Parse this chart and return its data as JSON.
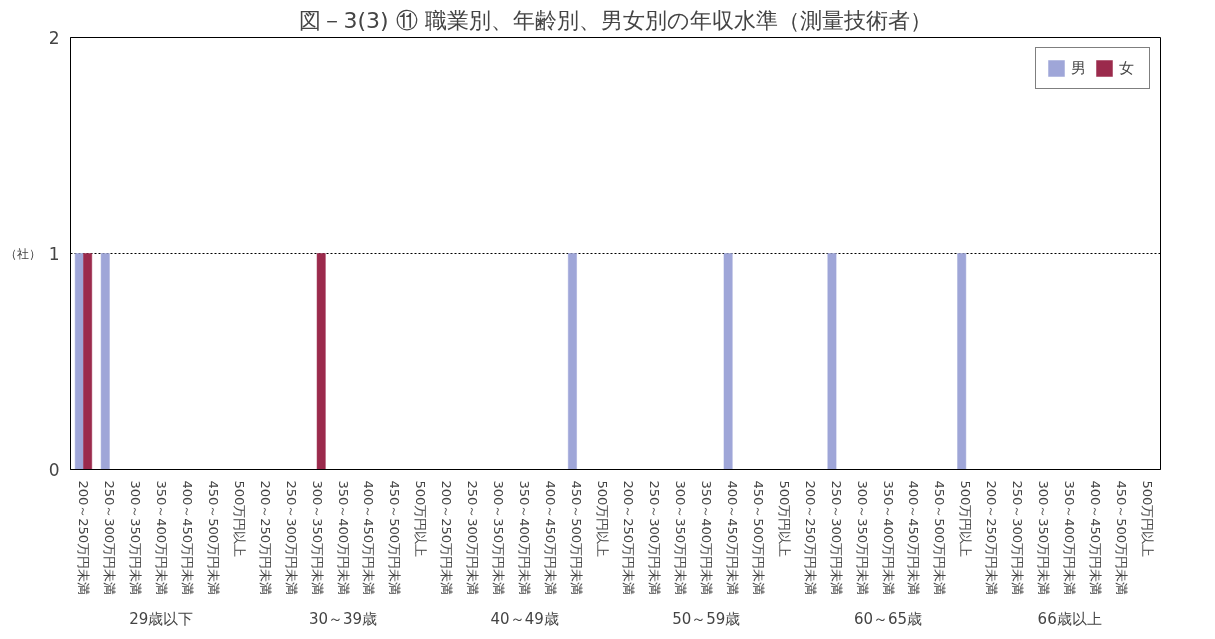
{
  "chart_data": {
    "type": "bar",
    "title": "図－3(3) ⑪ 職業別、年齢別、男女別の年収水準（測量技術者）",
    "ylabel": "（社）",
    "categories": [
      "200～250万円未満",
      "250～300万円未満",
      "300～350万円未満",
      "350～400万円未満",
      "400～450万円未満",
      "450～500万円未満",
      "500万円以上",
      "200～250万円未満",
      "250～300万円未満",
      "300～350万円未満",
      "350～400万円未満",
      "400～450万円未満",
      "450～500万円未満",
      "500万円以上",
      "200～250万円未満",
      "250～300万円未満",
      "300～350万円未満",
      "350～400万円未満",
      "400～450万円未満",
      "450～500万円未満",
      "500万円以上",
      "200～250万円未満",
      "250～300万円未満",
      "300～350万円未満",
      "350～400万円未満",
      "400～450万円未満",
      "450～500万円未満",
      "500万円以上",
      "200～250万円未満",
      "250～300万円未満",
      "300～350万円未満",
      "350～400万円未満",
      "400～450万円未満",
      "450～500万円未満",
      "500万円以上",
      "200～250万円未満",
      "250～300万円未満",
      "300～350万円未満",
      "350～400万円未満",
      "400～450万円未満",
      "450～500万円未満",
      "500万円以上"
    ],
    "series": [
      {
        "name": "男",
        "color": "#9fa6d8",
        "values": [
          1,
          1,
          0,
          0,
          0,
          0,
          0,
          0,
          0,
          0,
          0,
          0,
          0,
          0,
          0,
          0,
          0,
          0,
          0,
          1,
          0,
          0,
          0,
          0,
          0,
          1,
          0,
          0,
          0,
          1,
          0,
          0,
          0,
          0,
          1,
          0,
          0,
          0,
          0,
          0,
          0,
          0
        ]
      },
      {
        "name": "女",
        "color": "#9b2a4c",
        "values": [
          1,
          0,
          0,
          0,
          0,
          0,
          0,
          0,
          0,
          1,
          0,
          0,
          0,
          0,
          0,
          0,
          0,
          0,
          0,
          0,
          0,
          0,
          0,
          0,
          0,
          0,
          0,
          0,
          0,
          0,
          0,
          0,
          0,
          0,
          0,
          0,
          0,
          0,
          0,
          0,
          0,
          0
        ]
      }
    ],
    "annotations": [
      "29歳以下",
      "30～39歳",
      "40～49歳",
      "50～59歳",
      "60～65歳",
      "66歳以上"
    ],
    "ylim": [
      0,
      2
    ],
    "yticks": [
      0,
      1,
      2
    ],
    "grid": "y",
    "legend": "top right"
  }
}
